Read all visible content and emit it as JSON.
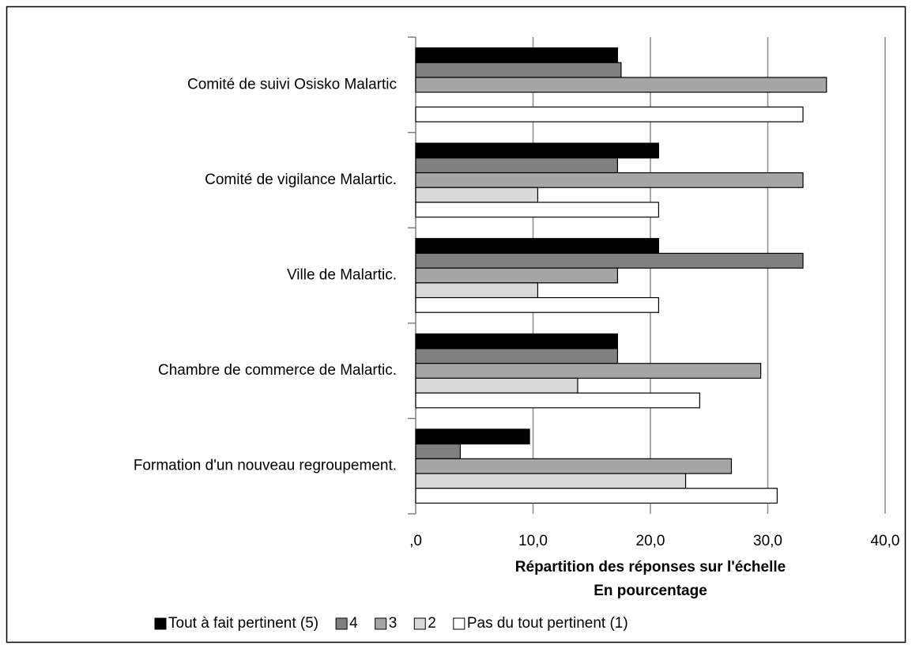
{
  "chart_data": {
    "type": "barh",
    "categories": [
      "Comité de suivi Osisko Malartic",
      "Comité de vigilance Malartic.",
      "Ville de Malartic.",
      "Chambre de commerce de Malartic.",
      "Formation d'un nouveau regroupement."
    ],
    "series": [
      {
        "name": "Tout à fait pertinent (5)",
        "color": "#000000",
        "values": [
          17.2,
          20.7,
          20.7,
          17.2,
          9.7
        ]
      },
      {
        "name": "4",
        "color": "#808080",
        "values": [
          17.5,
          17.2,
          33.0,
          17.2,
          3.8
        ]
      },
      {
        "name": "3",
        "color": "#a6a6a6",
        "values": [
          35.0,
          33.0,
          17.2,
          29.4,
          26.9
        ]
      },
      {
        "name": "2",
        "color": "#d9d9d9",
        "values": [
          0,
          10.4,
          10.4,
          13.8,
          23.0
        ]
      },
      {
        "name": "Pas du tout pertinent (1)",
        "color": "#ffffff",
        "values": [
          33.0,
          20.7,
          20.7,
          24.2,
          30.8
        ]
      }
    ],
    "xlabel": [
      "Répartition des réponses sur l'échelle",
      "En pourcentage"
    ],
    "xlim": [
      0,
      40
    ],
    "xticks": [
      {
        "value": 0,
        "label": ",0"
      },
      {
        "value": 10,
        "label": "10,0"
      },
      {
        "value": 20,
        "label": "20,0"
      },
      {
        "value": 30,
        "label": "30,0"
      },
      {
        "value": 40,
        "label": "40,0"
      }
    ],
    "grid": true,
    "legend": "bottom"
  }
}
